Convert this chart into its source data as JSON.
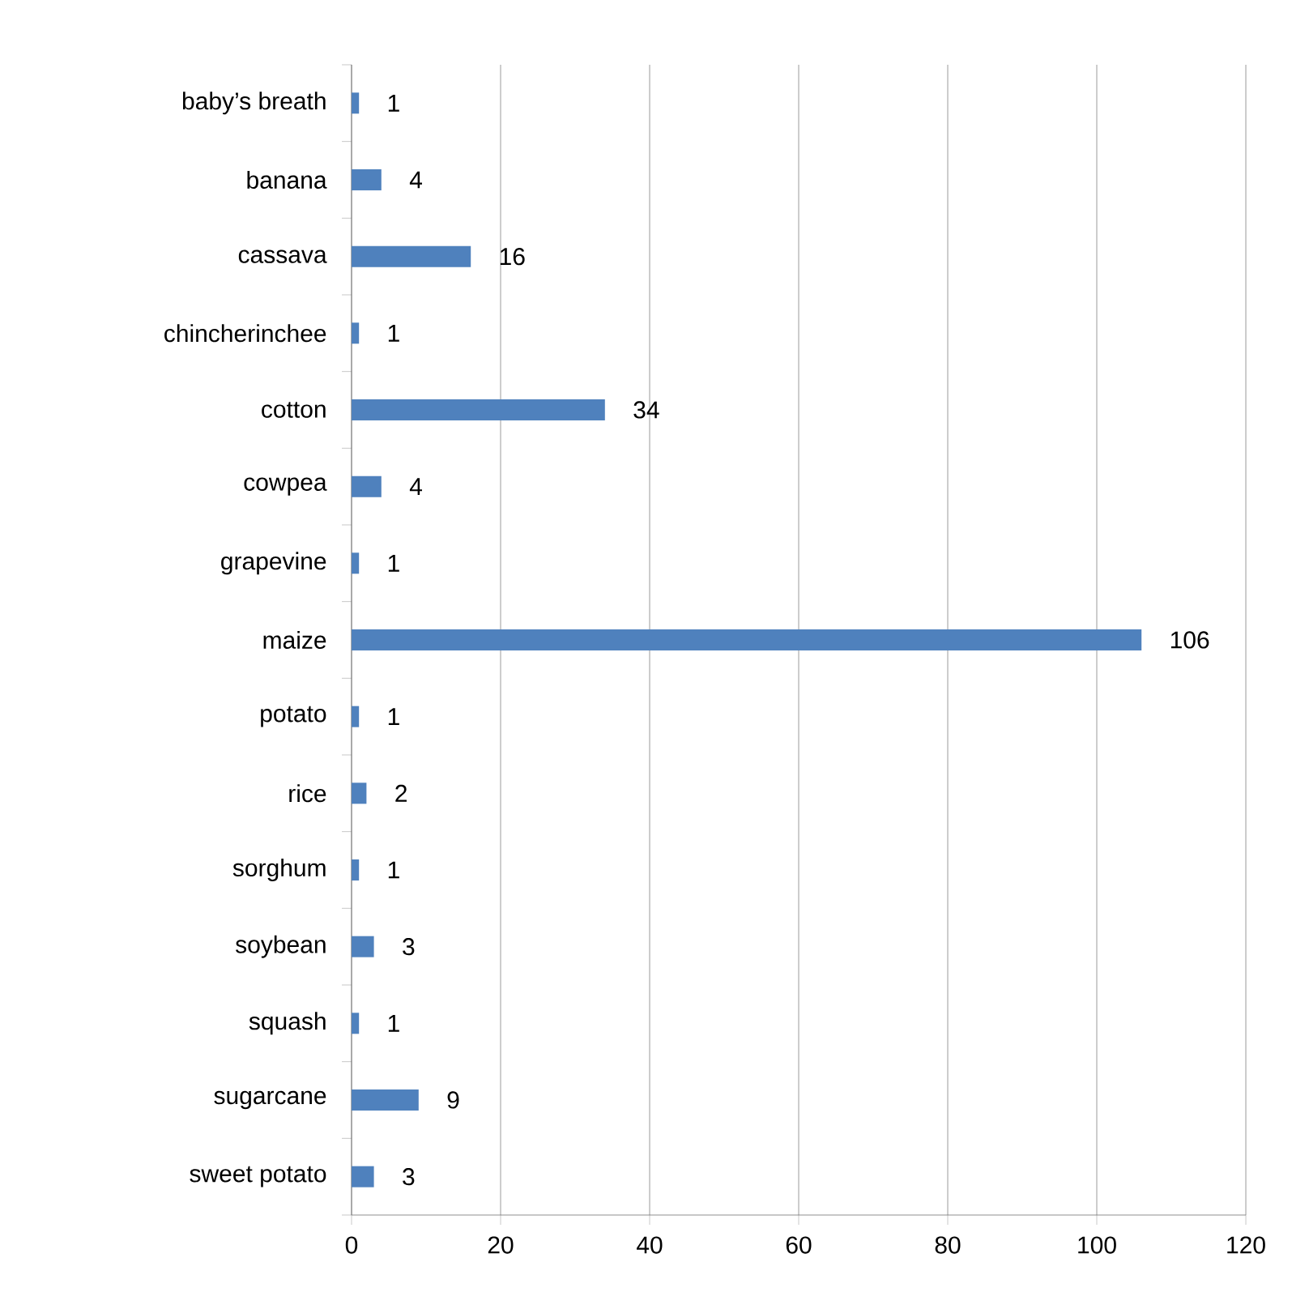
{
  "chart_data": {
    "type": "bar",
    "orientation": "horizontal",
    "categories": [
      "baby’s breath",
      "banana",
      "cassava",
      "chincherinchee",
      "cotton",
      "cowpea",
      "grapevine",
      "maize",
      "potato",
      "rice",
      "sorghum",
      "soybean",
      "squash",
      "sugarcane",
      "sweet potato"
    ],
    "values": [
      1,
      4,
      16,
      1,
      34,
      4,
      1,
      106,
      1,
      2,
      1,
      3,
      1,
      9,
      3
    ],
    "color": "#4f81bd",
    "xlim": [
      0,
      120
    ],
    "xticks": [
      0,
      20,
      40,
      60,
      80,
      100,
      120
    ],
    "grid": "x",
    "data_labels": true
  }
}
